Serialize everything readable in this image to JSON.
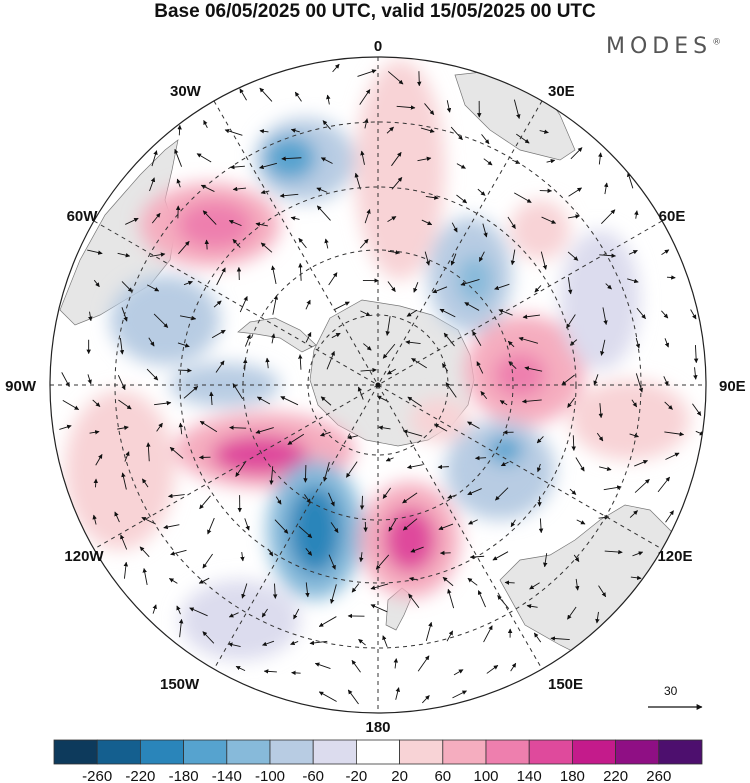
{
  "title": "Base 06/05/2025 00 UTC, valid 15/05/2025 00 UTC",
  "brand": "MODES",
  "brand_mark": "®",
  "longitude_labels": [
    {
      "id": "lon-0",
      "text": "0"
    },
    {
      "id": "lon-30e",
      "text": "30E"
    },
    {
      "id": "lon-60e",
      "text": "60E"
    },
    {
      "id": "lon-90e",
      "text": "90E"
    },
    {
      "id": "lon-120e",
      "text": "120E"
    },
    {
      "id": "lon-150e",
      "text": "150E"
    },
    {
      "id": "lon-180",
      "text": "180"
    },
    {
      "id": "lon-150w",
      "text": "150W"
    },
    {
      "id": "lon-120w",
      "text": "120W"
    },
    {
      "id": "lon-90w",
      "text": "90W"
    },
    {
      "id": "lon-60w",
      "text": "60W"
    },
    {
      "id": "lon-30w",
      "text": "30W"
    }
  ],
  "reference_vector": {
    "value": "30"
  },
  "colorbar": {
    "ticks": [
      "-260",
      "-220",
      "-180",
      "-140",
      "-100",
      "-60",
      "-20",
      "20",
      "60",
      "100",
      "140",
      "180",
      "220",
      "260"
    ],
    "colors": [
      "#0d3a5c",
      "#145f8f",
      "#2a85ba",
      "#56a3cf",
      "#87bada",
      "#b8cce3",
      "#dcdcee",
      "#ffffff",
      "#f8d3d6",
      "#f5adbf",
      "#ee7fae",
      "#df4a9c",
      "#c41b8b",
      "#8f0f84",
      "#4d0f6e"
    ]
  },
  "colors": {
    "land": "#e6e6e6",
    "negative_anomaly": "#2a85ba",
    "positive_anomaly": "#df4a9c"
  }
}
